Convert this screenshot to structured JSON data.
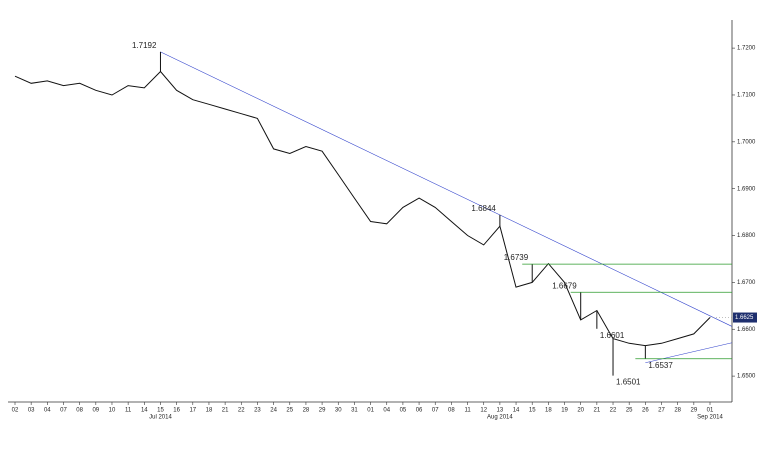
{
  "chart_data": {
    "type": "line",
    "color": "#111111",
    "categories": [
      "02",
      "03",
      "04",
      "07",
      "08",
      "09",
      "10",
      "11",
      "14",
      "15",
      "16",
      "17",
      "18",
      "21",
      "22",
      "23",
      "24",
      "25",
      "28",
      "29",
      "30",
      "31",
      "01",
      "04",
      "05",
      "06",
      "07",
      "08",
      "11",
      "12",
      "13",
      "14",
      "15",
      "18",
      "19",
      "20",
      "21",
      "22",
      "25",
      "26",
      "27",
      "28",
      "29",
      "01"
    ],
    "months": [
      {
        "label": "Jul 2014",
        "at": 9
      },
      {
        "label": "Aug 2014",
        "at": 30
      },
      {
        "label": "Sep 2014",
        "at": 43
      }
    ],
    "values": [
      1.714,
      1.7125,
      1.713,
      1.712,
      1.7125,
      1.711,
      1.71,
      1.712,
      1.7115,
      1.715,
      1.711,
      1.709,
      1.708,
      1.707,
      1.706,
      1.705,
      1.6985,
      1.6975,
      1.699,
      1.698,
      1.693,
      1.688,
      1.683,
      1.6825,
      1.686,
      1.688,
      1.686,
      1.683,
      1.68,
      1.678,
      1.682,
      1.669,
      1.67,
      1.674,
      1.67,
      1.662,
      1.664,
      1.658,
      1.657,
      1.6565,
      1.657,
      1.658,
      1.659,
      1.6625
    ],
    "ylim": [
      1.6449,
      1.726
    ],
    "yticks": [
      {
        "value": 1.65,
        "label": "1.6500"
      },
      {
        "value": 1.66,
        "label": "1.6600"
      },
      {
        "value": 1.67,
        "label": "1.6700"
      },
      {
        "value": 1.68,
        "label": "1.6800"
      },
      {
        "value": 1.69,
        "label": "1.6900"
      },
      {
        "value": 1.7,
        "label": "1.7000"
      },
      {
        "value": 1.71,
        "label": "1.7100"
      },
      {
        "value": 1.72,
        "label": "1.7200"
      }
    ],
    "annotations": [
      {
        "label": "1.7192",
        "value": 1.7192,
        "at": 9,
        "line": false
      },
      {
        "label": "1.6844",
        "value": 1.6844,
        "at": 30,
        "line": false
      },
      {
        "label": "1.6739",
        "value": 1.6739,
        "at": 32,
        "line": true
      },
      {
        "label": "1.6679",
        "value": 1.6679,
        "at": 35,
        "line": true
      },
      {
        "label": "1.6601",
        "value": 1.6601,
        "at": 36,
        "line": false
      },
      {
        "label": "1.6501",
        "value": 1.6501,
        "at": 37,
        "line": false
      },
      {
        "label": "1.6537",
        "value": 1.6537,
        "at": 39,
        "line": true
      }
    ],
    "last_price": {
      "value": 1.6625,
      "label": "1.6625"
    },
    "resistance_color": "#3344cc",
    "level_color": "#2a9a2a",
    "label_color": "#1e2f6e"
  }
}
